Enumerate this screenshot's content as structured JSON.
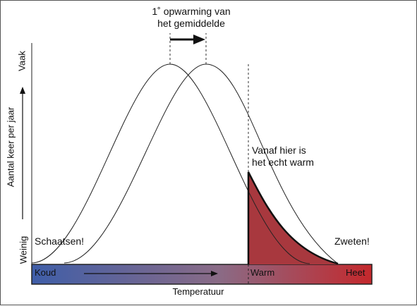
{
  "labels": {
    "shift_line1": "1˚ opwarming van",
    "shift_line2": "het gemiddelde",
    "vanaf_line1": "Vanaf hier is",
    "vanaf_line2": "het echt warm",
    "schaatsen": "Schaatsen!",
    "zweten": "Zweten!",
    "koud": "Koud",
    "warm": "Warm",
    "heet": "Heet",
    "x_axis": "Temperatuur",
    "y_axis": "Aantal keer per jaar",
    "y_high": "Vaak",
    "y_low": "Weinig"
  },
  "colors": {
    "cold": "#3f5ea8",
    "mid": "#8a6b86",
    "hot": "#c4282c",
    "shaded_area": "#a8383e",
    "curve": "#222222"
  }
}
